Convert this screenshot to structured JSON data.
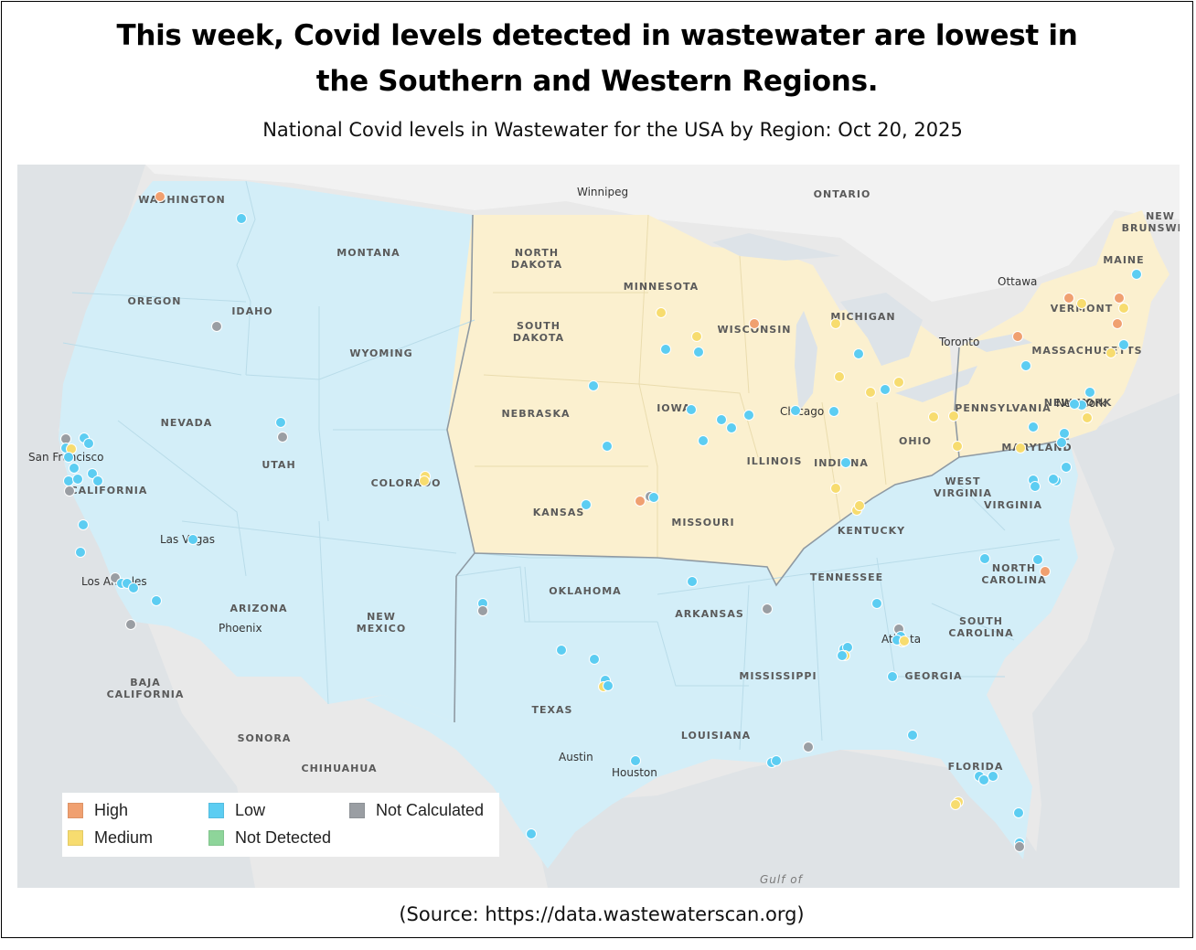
{
  "title_line1": "This week, Covid levels detected in wastewater are lowest in",
  "title_line2": "the Southern and Western Regions.",
  "subtitle": "National Covid levels in Wastewater for the USA by Region: Oct 20, 2025",
  "source": "(Source: https://data.wastewaterscan.org)",
  "colors": {
    "high": "#f0a070",
    "medium": "#f7dc6f",
    "low": "#5ccdf2",
    "not_detected": "#8ed59a",
    "not_calculated": "#9a9ea3",
    "region_low": "#d3eef8",
    "region_medium": "#fbf0cf",
    "water": "#dde3e8",
    "land_outside": "#ececec"
  },
  "legend": {
    "high": "High",
    "medium": "Medium",
    "low": "Low",
    "not_detected": "Not Detected",
    "not_calculated": "Not Calculated"
  },
  "region_levels": {
    "West": "Low",
    "Midwest": "Medium",
    "Northeast": "Medium",
    "South": "Low"
  },
  "map_labels": {
    "states": [
      "WASHINGTON",
      "MONTANA",
      "OREGON",
      "IDAHO",
      "WYOMING",
      "NEVADA",
      "UTAH",
      "COLORADO",
      "CALIFORNIA",
      "ARIZONA",
      "NEW MEXICO",
      "NORTH DAKOTA",
      "SOUTH DAKOTA",
      "NEBRASKA",
      "KANSAS",
      "MINNESOTA",
      "IOWA",
      "MISSOURI",
      "WISCONSIN",
      "ILLINOIS",
      "MICHIGAN",
      "INDIANA",
      "OHIO",
      "KENTUCKY",
      "TENNESSEE",
      "OKLAHOMA",
      "TEXAS",
      "ARKANSAS",
      "LOUISIANA",
      "MISSISSIPPI",
      "GEORGIA",
      "FLORIDA",
      "SOUTH CAROLINA",
      "NORTH CAROLINA",
      "VIRGINIA",
      "WEST VIRGINIA",
      "PENNSYLVANIA",
      "NEW YORK",
      "MARYLAND",
      "VERMONT",
      "MAINE",
      "MASSACHUSETTS",
      "NEW BRUNSWICK",
      "ONTARIO",
      "BAJA CALIFORNIA",
      "SONORA",
      "CHIHUAHUA"
    ],
    "cities": [
      "Winnipeg",
      "Ottawa",
      "Toronto",
      "San Francisco",
      "Las Vegas",
      "Los Angeles",
      "Phoenix",
      "Austin",
      "Houston",
      "Chicago",
      "Atlanta",
      "New York"
    ],
    "water": [
      "Gulf of"
    ]
  }
}
